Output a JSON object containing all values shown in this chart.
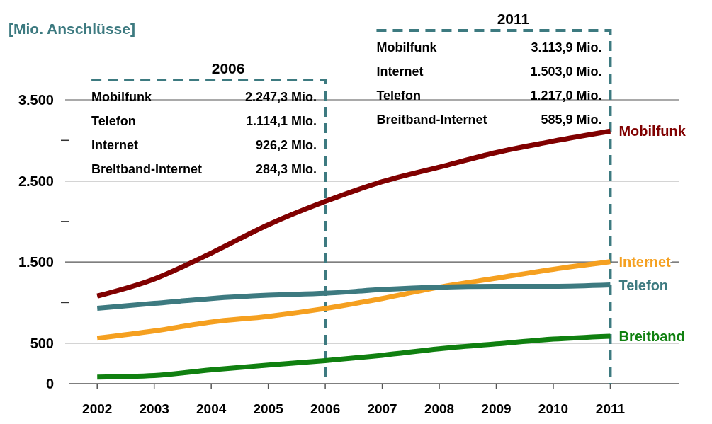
{
  "chart_data": {
    "type": "line",
    "ylabel": "[Mio. Anschlüsse]",
    "x": [
      2002,
      2003,
      2004,
      2005,
      2006,
      2007,
      2008,
      2009,
      2010,
      2011
    ],
    "xlim": [
      2001.5,
      2012.2
    ],
    "xticks": [
      2002,
      2003,
      2004,
      2005,
      2006,
      2007,
      2008,
      2009,
      2010,
      2011
    ],
    "ylim": [
      0,
      3500
    ],
    "yticks": [
      0,
      500,
      {
        "value": 1000,
        "label": null
      },
      {
        "value": 1500,
        "label": "1.500"
      },
      {
        "value": 2000,
        "label": null
      },
      {
        "value": 2500,
        "label": "2.500"
      },
      {
        "value": 3000,
        "label": null
      },
      {
        "value": 3500,
        "label": "3.500"
      }
    ],
    "grid": "y",
    "legend": false,
    "marker": "none",
    "line_style": "solid",
    "series": [
      {
        "name": "Mobilfunk",
        "color": "#800000",
        "values": [
          1080,
          1290,
          1610,
          1960,
          2247.3,
          2490,
          2670,
          2850,
          2990,
          3113.9
        ]
      },
      {
        "name": "Internet",
        "color": "#f5a020",
        "values": [
          560,
          650,
          760,
          830,
          926.2,
          1050,
          1190,
          1300,
          1410,
          1503
        ]
      },
      {
        "name": "Telefon",
        "color": "#3d7a80",
        "values": [
          930,
          990,
          1050,
          1090,
          1114.1,
          1160,
          1190,
          1200,
          1200,
          1217
        ]
      },
      {
        "name": "Breitband",
        "color": "#108010",
        "values": [
          80,
          100,
          170,
          230,
          284.3,
          350,
          430,
          490,
          550,
          585.9
        ]
      }
    ],
    "ref_lines": [
      {
        "axis": "x",
        "value": 2006,
        "label": "2006",
        "color": "#3d7a80",
        "line_style": "dashed"
      },
      {
        "axis": "x",
        "value": 2011,
        "label": "2011",
        "color": "#3d7a80",
        "line_style": "dashed"
      }
    ],
    "annotations": [
      "Mobilfunk 2.247,3 Mio.",
      "Telefon 1.114,1 Mio.",
      "Internet 926,2 Mio.",
      "Breitband-Internet 284,3 Mio.",
      "Mobilfunk 3.113,9 Mio.",
      "Internet 1.503,0 Mio.",
      "Telefon 1.217,0 Mio.",
      "Breitband-Internet 585,9 Mio."
    ]
  }
}
